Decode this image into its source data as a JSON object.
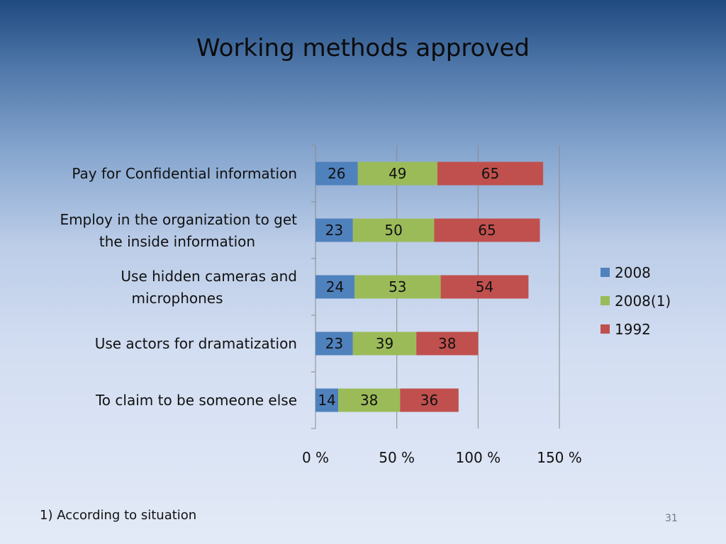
{
  "slide": {
    "title": "Working methods approved",
    "footnote": "1) According to situation",
    "page_number": "31"
  },
  "chart_data": {
    "type": "bar",
    "orientation": "horizontal",
    "stacked": true,
    "categories": [
      [
        "Pay for Confidential information"
      ],
      [
        "Employ in the organization to get",
        "the inside information"
      ],
      [
        "Use hidden cameras and",
        "microphones"
      ],
      [
        "Use actors for dramatization"
      ],
      [
        "To claim to be someone else"
      ]
    ],
    "series": [
      {
        "name": "2008",
        "color": "#4f81bd",
        "values": [
          26,
          23,
          24,
          23,
          14
        ]
      },
      {
        "name": "2008(1)",
        "color": "#9bbb59",
        "values": [
          49,
          50,
          53,
          39,
          38
        ]
      },
      {
        "name": "1992",
        "color": "#c0504d",
        "values": [
          65,
          65,
          54,
          38,
          36
        ]
      }
    ],
    "xlim": [
      0,
      150
    ],
    "xticks": [
      0,
      50,
      100,
      150
    ],
    "xtick_labels": [
      "0 %",
      "50 %",
      "100 %",
      "150 %"
    ],
    "grid": true,
    "legend": "right"
  }
}
